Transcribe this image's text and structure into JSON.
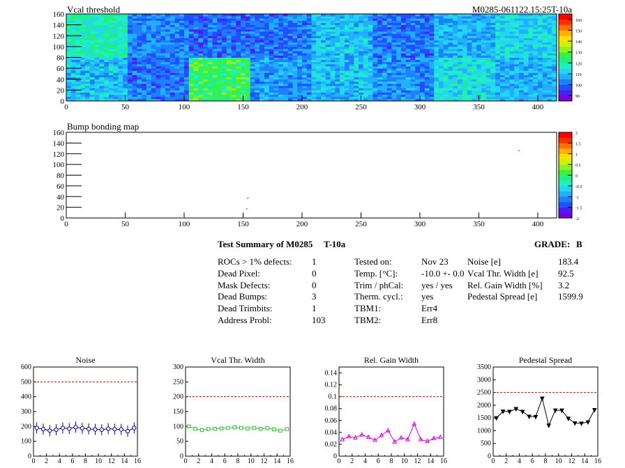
{
  "maps": [
    {
      "title": "Vcal threshold",
      "module_tag": "M0285-061122.15:25T-10a",
      "x_ticks": [
        "0",
        "50",
        "100",
        "150",
        "200",
        "250",
        "300",
        "350",
        "400"
      ],
      "y_ticks": [
        "0",
        "20",
        "40",
        "60",
        "80",
        "100",
        "120",
        "140",
        "160"
      ],
      "z_ticks": [
        "90",
        "100",
        "110",
        "120",
        "130",
        "140",
        "150",
        "160"
      ],
      "x_range": [
        0,
        416
      ],
      "y_range": [
        0,
        160
      ],
      "z_range": [
        85,
        165
      ]
    },
    {
      "title": "Bump bonding map",
      "x_ticks": [
        "0",
        "50",
        "100",
        "150",
        "200",
        "250",
        "300",
        "350",
        "400"
      ],
      "y_ticks": [
        "0",
        "20",
        "40",
        "60",
        "80",
        "100",
        "120",
        "140",
        "160"
      ],
      "z_ticks": [
        "2",
        "1.5",
        "1",
        "0.5",
        "0",
        "-0.5",
        "-1",
        "-1.5",
        "-2"
      ],
      "x_range": [
        0,
        416
      ],
      "y_range": [
        0,
        160
      ],
      "z_range": [
        -2,
        2
      ]
    }
  ],
  "summary": {
    "title": "Test Summary of M0285",
    "test": "T-10a",
    "grade_label": "GRADE:",
    "grade_value": "B",
    "col1": [
      {
        "label": "ROCs > 1% defects:",
        "value": "1"
      },
      {
        "label": "Dead Pixel:",
        "value": "0"
      },
      {
        "label": "Mask Defects:",
        "value": "0"
      },
      {
        "label": "Dead Bumps:",
        "value": "3"
      },
      {
        "label": "Dead Trimbits:",
        "value": "1"
      },
      {
        "label": "Address Probl:",
        "value": "103"
      }
    ],
    "col2": [
      {
        "label": "Tested on:",
        "value": "Nov 23"
      },
      {
        "label": "Temp. [°C]:",
        "value": "-10.0 +- 0.0"
      },
      {
        "label": "Trim / phCal:",
        "value": "yes / yes"
      },
      {
        "label": "Therm. cycl.:",
        "value": "yes"
      },
      {
        "label": "TBM1:",
        "value": "Err4"
      },
      {
        "label": "TBM2:",
        "value": "Err8"
      }
    ],
    "col3": [
      {
        "label": "Noise [e]",
        "value": "183.4"
      },
      {
        "label": "Vcal Thr. Width [e]",
        "value": "92.5"
      },
      {
        "label": "Rel. Gain Width [%]",
        "value": "3.2"
      },
      {
        "label": "Pedestal Spread [e]",
        "value": "1599.9"
      }
    ]
  },
  "chart_data": [
    {
      "type": "heatmap",
      "title": "Vcal threshold",
      "xlim": [
        0,
        416
      ],
      "ylim": [
        0,
        160
      ],
      "zlim": [
        85,
        165
      ],
      "roc_grid": {
        "cols": 8,
        "rows": 2,
        "roc_width": 52,
        "roc_height": 80
      },
      "roc_mean_levels": {
        "top_row": [
          118,
          103,
          100,
          101,
          110,
          101,
          108,
          112
        ],
        "bottom_row": [
          110,
          101,
          125,
          105,
          110,
          104,
          114,
          108
        ]
      }
    },
    {
      "type": "scatter",
      "title": "Bump bonding map",
      "xlim": [
        0,
        416
      ],
      "ylim": [
        0,
        160
      ],
      "points": [
        {
          "x": 154,
          "y": 37
        },
        {
          "x": 153,
          "y": 17
        },
        {
          "x": 384,
          "y": 126
        }
      ]
    },
    {
      "type": "line",
      "title": "Noise",
      "x": [
        0,
        1,
        2,
        3,
        4,
        5,
        6,
        7,
        8,
        9,
        10,
        11,
        12,
        13,
        14,
        15
      ],
      "values": [
        190,
        182,
        172,
        178,
        190,
        185,
        195,
        188,
        183,
        180,
        178,
        185,
        182,
        180,
        168,
        190
      ],
      "reference": 500,
      "xlim": [
        0,
        16
      ],
      "ylim": [
        0,
        600
      ],
      "x_ticks": [
        "0",
        "2",
        "4",
        "6",
        "8",
        "10",
        "12",
        "14",
        "16"
      ],
      "y_ticks": [
        "0",
        "100",
        "200",
        "300",
        "400",
        "500",
        "600"
      ],
      "color": "#000099"
    },
    {
      "type": "line",
      "title": "Vcal Thr. Width",
      "x": [
        0,
        1,
        2,
        3,
        4,
        5,
        6,
        7,
        8,
        9,
        10,
        11,
        12,
        13,
        14,
        15
      ],
      "values": [
        100,
        92,
        88,
        91,
        92,
        93,
        95,
        97,
        95,
        93,
        95,
        92,
        94,
        90,
        86,
        91
      ],
      "reference": 200,
      "xlim": [
        0,
        16
      ],
      "ylim": [
        0,
        300
      ],
      "x_ticks": [
        "0",
        "2",
        "4",
        "6",
        "8",
        "10",
        "12",
        "14",
        "16"
      ],
      "y_ticks": [
        "0",
        "50",
        "100",
        "150",
        "200",
        "250",
        "300"
      ],
      "color": "#33bb33"
    },
    {
      "type": "line",
      "title": "Rel. Gain Width",
      "x": [
        0,
        1,
        2,
        3,
        4,
        5,
        6,
        7,
        8,
        9,
        10,
        11,
        12,
        13,
        14,
        15
      ],
      "values": [
        0.028,
        0.033,
        0.031,
        0.036,
        0.032,
        0.027,
        0.035,
        0.043,
        0.024,
        0.031,
        0.028,
        0.054,
        0.028,
        0.025,
        0.03,
        0.032
      ],
      "reference": 0.1,
      "xlim": [
        0,
        16
      ],
      "ylim": [
        0,
        0.15
      ],
      "x_ticks": [
        "0",
        "2",
        "4",
        "6",
        "8",
        "10",
        "12",
        "14",
        "16"
      ],
      "y_ticks": [
        "0",
        "0.02",
        "0.04",
        "0.06",
        "0.08",
        "0.1",
        "0.12",
        "0.14"
      ],
      "color": "#dd00dd"
    },
    {
      "type": "line",
      "title": "Pedestal Spread",
      "x": [
        0,
        1,
        2,
        3,
        4,
        5,
        6,
        7,
        8,
        9,
        10,
        11,
        12,
        13,
        14,
        15
      ],
      "values": [
        1500,
        1760,
        1750,
        1860,
        1750,
        1560,
        1550,
        2270,
        1210,
        1800,
        1800,
        1480,
        1300,
        1290,
        1340,
        1820
      ],
      "reference": 2500,
      "xlim": [
        0,
        16
      ],
      "ylim": [
        0,
        3500
      ],
      "x_ticks": [
        "0",
        "2",
        "4",
        "6",
        "8",
        "10",
        "12",
        "14",
        "16"
      ],
      "y_ticks": [
        "0",
        "500",
        "1000",
        "1500",
        "2000",
        "2500",
        "3000",
        "3500"
      ],
      "color": "#000000"
    }
  ]
}
